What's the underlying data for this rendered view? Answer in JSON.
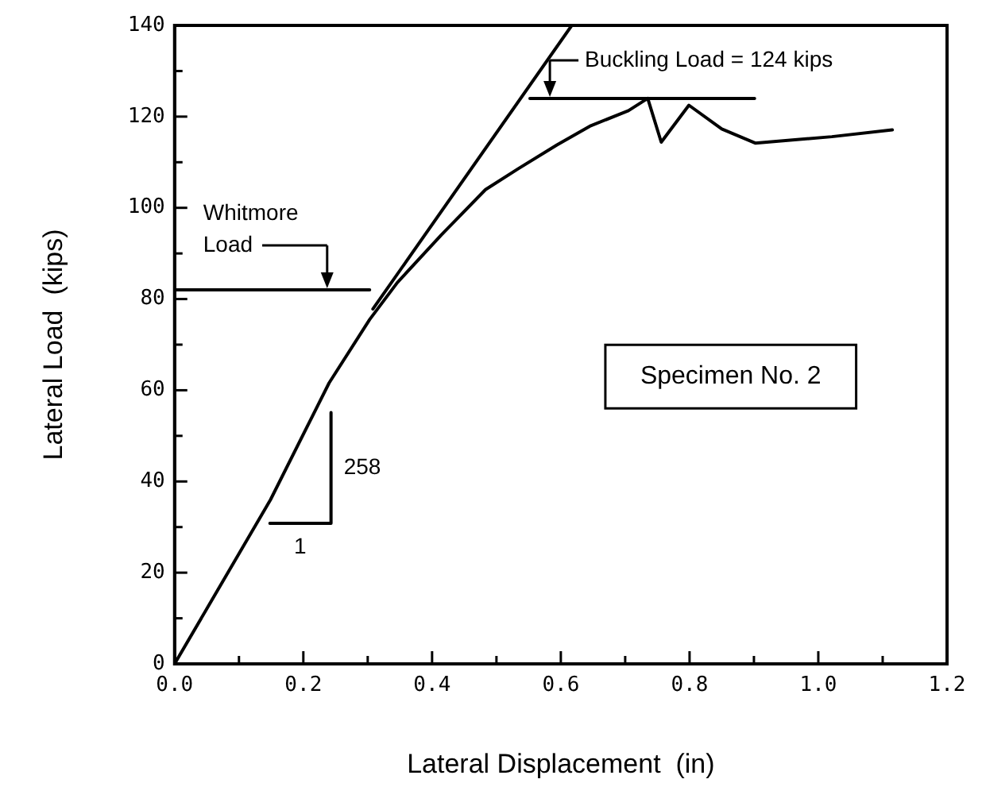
{
  "chart_data": {
    "type": "line",
    "xlabel": "Lateral Displacement  (in)",
    "ylabel": "Lateral Load  (kips)",
    "xlim": [
      0,
      1.2
    ],
    "ylim": [
      0,
      140
    ],
    "xticks": [
      {
        "value": 0,
        "label": "0.0"
      },
      {
        "value": 0.1,
        "label": null
      },
      {
        "value": 0.2,
        "label": "0.2"
      },
      {
        "value": 0.3,
        "label": null
      },
      {
        "value": 0.4,
        "label": "0.4"
      },
      {
        "value": 0.5,
        "label": null
      },
      {
        "value": 0.6,
        "label": "0.6"
      },
      {
        "value": 0.7,
        "label": null
      },
      {
        "value": 0.8,
        "label": "0.8"
      },
      {
        "value": 0.9,
        "label": null
      },
      {
        "value": 1.0,
        "label": "1.0"
      },
      {
        "value": 1.1,
        "label": null
      },
      {
        "value": 1.2,
        "label": "1.2"
      }
    ],
    "yticks": [
      0,
      {
        "value": 10,
        "label": null
      },
      20,
      {
        "value": 30,
        "label": null
      },
      40,
      {
        "value": 50,
        "label": null
      },
      60,
      {
        "value": 70,
        "label": null
      },
      80,
      {
        "value": 90,
        "label": null
      },
      100,
      {
        "value": 110,
        "label": null
      },
      120,
      {
        "value": 130,
        "label": null
      },
      140
    ],
    "grid": false,
    "legend": false,
    "marker": "none",
    "line_style": "solid",
    "series": [
      {
        "color": "#000000",
        "x": [
          0,
          0.149,
          0.24,
          0.303,
          0.346,
          0.414,
          0.483,
          0.534,
          0.594,
          0.645,
          0.705,
          0.735,
          0.756,
          0.799,
          0.85,
          0.902,
          1.021,
          1.115
        ],
        "values": [
          0,
          36,
          61.6,
          75.5,
          83.6,
          94,
          104,
          108.6,
          113.8,
          117.9,
          121.3,
          124,
          114.4,
          122.5,
          117.3,
          114.2,
          115.6,
          117.1
        ]
      },
      {
        "color": "#000000",
        "x": [
          0.308,
          0.617
        ],
        "values": [
          77.8,
          140
        ]
      },
      {
        "color": "#000000",
        "x": [
          0.148,
          0.243,
          0.243
        ],
        "values": [
          30.8,
          30.8,
          55.1
        ]
      },
      {
        "color": "#000000",
        "x": [
          0,
          0.303
        ],
        "values": [
          82,
          82
        ]
      },
      {
        "color": "#000000",
        "x": [
          0.552,
          0.901
        ],
        "values": [
          124,
          124
        ]
      }
    ],
    "annotations": [
      {
        "text": "Whitmore\nLoad",
        "x": 0.237,
        "y": 82
      },
      {
        "text": "Buckling Load = 124 kips",
        "x": 0.583,
        "y": 124
      },
      {
        "text": "258",
        "x": 0.243,
        "y": 43
      },
      {
        "text": "1",
        "x": 0.195,
        "y": 30.8
      },
      "Specimen No. 2"
    ]
  }
}
